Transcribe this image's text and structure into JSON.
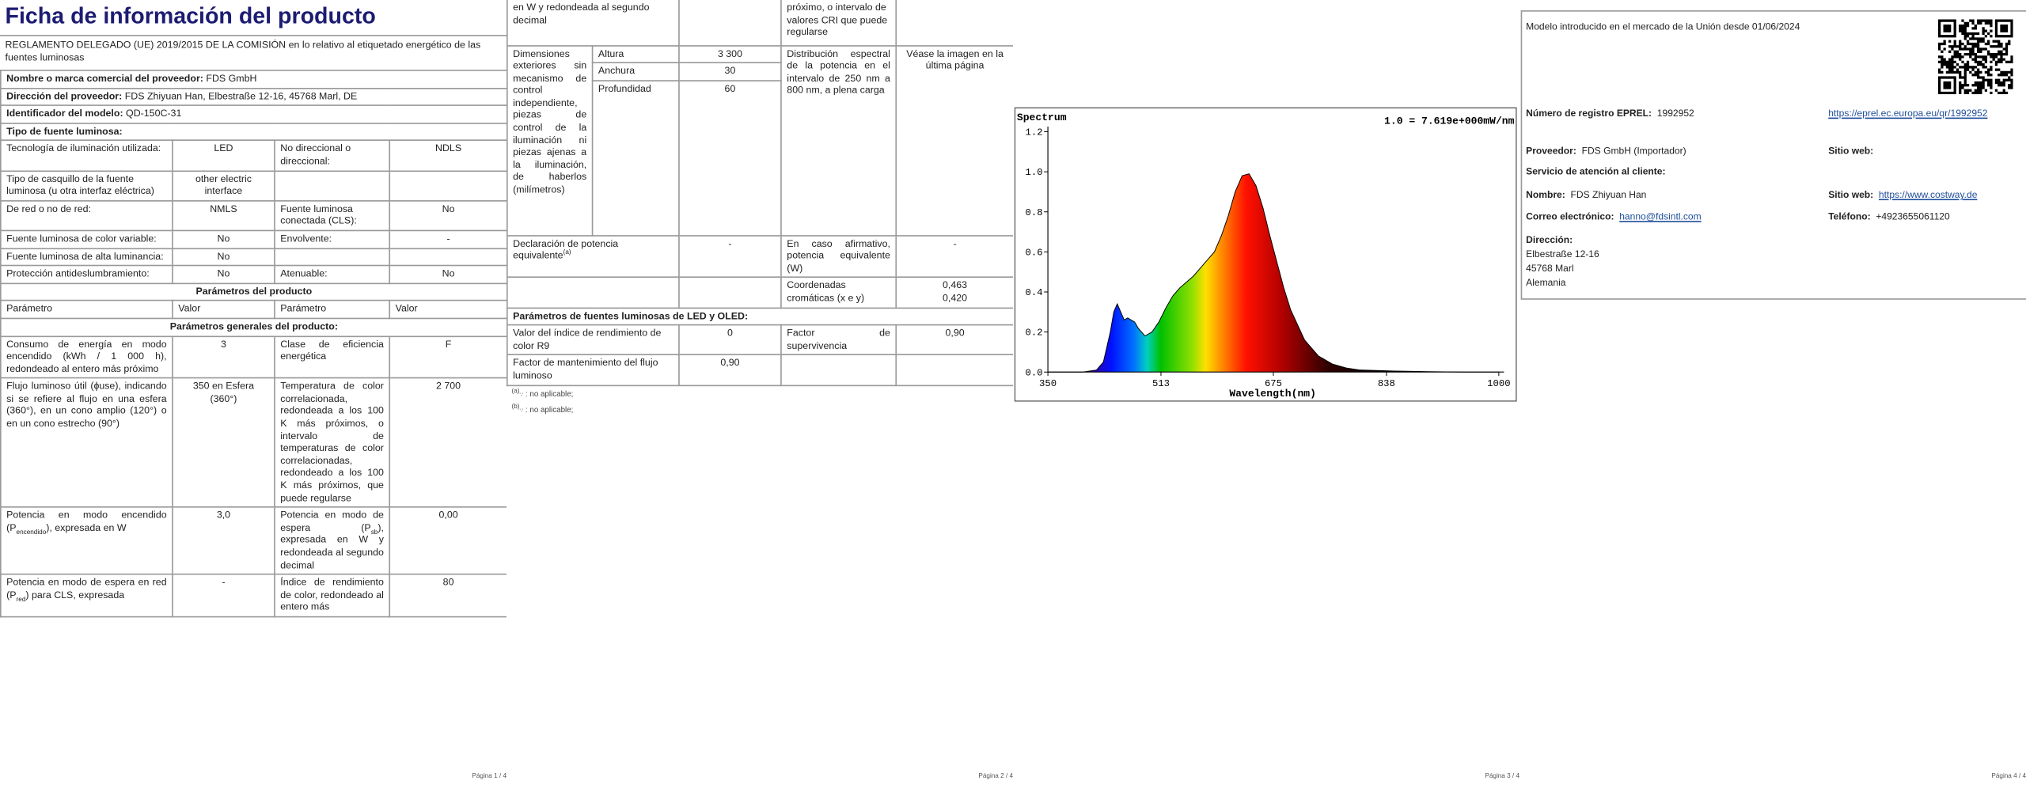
{
  "page1": {
    "title": "Ficha de información del producto",
    "regulation": "REGLAMENTO DELEGADO (UE) 2019/2015 DE LA COMISIÓN en lo relativo al etiquetado energético de las fuentes luminosas",
    "supplier": {
      "label": "Nombre o marca comercial del proveedor:",
      "value": "FDS GmbH"
    },
    "address": {
      "label": "Dirección del proveedor:",
      "value": "FDS Zhiyuan Han, Elbestraße 12-16, 45768 Marl, DE"
    },
    "model": {
      "label": "Identificador del modelo:",
      "value": "QD-150C-31"
    },
    "source_type": "Tipo de fuente luminosa:",
    "rows": [
      [
        "Tecnología de iluminación utilizada:",
        "LED",
        "No direccional o direccional:",
        "NDLS"
      ],
      [
        "Tipo de casquillo de la fuente luminosa (u otra interfaz eléctrica)",
        "other electric interface"
      ],
      [
        "De red o no de red:",
        "NMLS",
        "Fuente luminosa conectada (CLS):",
        "No"
      ],
      [
        "Fuente luminosa de color variable:",
        "No",
        "Envolvente:",
        "-"
      ],
      [
        "Fuente luminosa de alta luminancia:",
        "No"
      ],
      [
        "Protección antideslumbramiento:",
        "No",
        "Atenuable:",
        "No"
      ]
    ],
    "product_params": "Parámetros del producto",
    "header": [
      "Parámetro",
      "Valor",
      "Parámetro",
      "Valor"
    ],
    "general": "Parámetros generales del producto:",
    "general_rows": [
      [
        "Consumo de energía en modo encendido (kWh / 1 000 h), redondeado al entero más próximo",
        "3",
        "Clase de eficiencia energética",
        "F"
      ],
      [
        "Flujo luminoso útil (ɸuse), indicando si se refiere al flujo en una esfera (360°), en un cono amplio (120°) o en un cono estrecho (90°)",
        "350 en Esfera (360°)",
        "Temperatura de color correlacionada, redondeada a los 100 K más próximos, o intervalo de temperaturas de color correlacionadas, redondeado a los 100 K más próximos, que puede regularse",
        "2 700"
      ],
      [
        [
          "Potencia en modo encendido (P",
          "encendido",
          "), expresada en W"
        ],
        "3,0",
        [
          "Potencia en modo de espera (P",
          "sb",
          "), expresada en W y redondeada al segundo decimal"
        ],
        "0,00"
      ],
      [
        [
          "Potencia en modo de espera en red (P",
          "red",
          ") para CLS, expresada"
        ],
        "-",
        "Índice de rendimiento de color, redondeado al entero más",
        "80"
      ]
    ],
    "footer": "Página 1 / 4"
  },
  "page2": {
    "continuation": [
      "en W y redondeada al segundo decimal",
      "próximo, o intervalo de valores CRI que puede regularse"
    ],
    "dimensions": {
      "label": "Dimensiones exteriores sin mecanismo de control independiente, piezas de control de la iluminación ni piezas ajenas a la iluminación, de haberlos (milímetros)",
      "items": [
        [
          "Altura",
          "3 300"
        ],
        [
          "Anchura",
          "30"
        ],
        [
          "Profundidad",
          "60"
        ]
      ],
      "spd_label": "Distribución espectral de la potencia en el intervalo de 250 nm a 800 nm, a plena carga",
      "spd_value": "Véase la imagen en la última página"
    },
    "equivalent": [
      [
        "Declaración de potencia equivalente",
        "(a)"
      ],
      "-",
      "En caso afirmativo, potencia equivalente (W)",
      "-"
    ],
    "chromaticity": {
      "label": "Coordenadas cromáticas (x e y)",
      "x": "0,463",
      "y": "0,420"
    },
    "led_header": "Parámetros de fuentes luminosas de LED y OLED:",
    "led_rows": [
      [
        "Valor del índice de rendimiento de color R9",
        "0",
        "Factor de supervivencia",
        "0,90"
      ],
      [
        "Factor de mantenimiento del flujo luminoso",
        "0,90"
      ]
    ],
    "notes": [
      {
        "mark": "(a)",
        "symbol": "'-'",
        "text": ": no aplicable;"
      },
      {
        "mark": "(b)",
        "symbol": "'-'",
        "text": ": no aplicable;"
      }
    ],
    "footer": "Página 2 / 4"
  },
  "page3": {
    "chart_data": {
      "type": "area",
      "title": "Spectrum",
      "note": "1.0 = 7.619e+000mW/nm",
      "x_label": "Wavelength(nm)",
      "x": [
        350,
        400,
        420,
        430,
        440,
        445,
        450,
        455,
        460,
        465,
        470,
        475,
        480,
        490,
        500,
        510,
        520,
        530,
        540,
        550,
        560,
        570,
        580,
        590,
        600,
        610,
        620,
        630,
        640,
        650,
        660,
        670,
        680,
        690,
        700,
        720,
        740,
        760,
        780,
        800,
        850,
        900,
        950,
        1000
      ],
      "values": [
        0,
        0,
        0.01,
        0.05,
        0.2,
        0.3,
        0.34,
        0.3,
        0.26,
        0.27,
        0.26,
        0.25,
        0.22,
        0.18,
        0.2,
        0.25,
        0.32,
        0.38,
        0.42,
        0.45,
        0.48,
        0.52,
        0.56,
        0.6,
        0.68,
        0.78,
        0.9,
        0.98,
        0.99,
        0.93,
        0.82,
        0.68,
        0.55,
        0.42,
        0.31,
        0.16,
        0.08,
        0.04,
        0.02,
        0.01,
        0.005,
        0.002,
        0,
        0
      ],
      "xlim": [
        350,
        1000
      ],
      "xticks": [
        350,
        513,
        675,
        838,
        1000
      ],
      "ylim": [
        0,
        1.2
      ],
      "yticks": [
        {
          "value": 0,
          "label": "0.0"
        },
        {
          "value": 0.2,
          "label": "0.2"
        },
        {
          "value": 0.4,
          "label": "0.4"
        },
        {
          "value": 0.6,
          "label": "0.6"
        },
        {
          "value": 0.8,
          "label": "0.8"
        },
        {
          "value": 1,
          "label": "1.0"
        },
        {
          "value": 1.2,
          "label": "1.2"
        }
      ]
    },
    "footer": "Página 3 / 4"
  },
  "page4": {
    "market": "Modelo introducido en el mercado de la Unión desde 01/06/2024",
    "eprel": {
      "label": "Número de registro EPREL:",
      "value": "1992952",
      "link": "https://eprel.ec.europa.eu/qr/1992952"
    },
    "supplier": {
      "label": "Proveedor:",
      "value": "FDS GmbH (Importador)"
    },
    "website_label": "Sitio web:",
    "service": "Servicio de atención al cliente:",
    "name": {
      "label": "Nombre:",
      "value": "FDS Zhiyuan Han"
    },
    "service_website": {
      "label": "Sitio web:",
      "value": "https://www.costway.de"
    },
    "email": {
      "label": "Correo electrónico:",
      "value": "hanno@fdsintl.com"
    },
    "phone": {
      "label": "Teléfono:",
      "value": "+4923655061120"
    },
    "address": {
      "label": "Dirección:",
      "lines": [
        "Elbestraße 12-16",
        "45768 Marl",
        "Alemania"
      ]
    },
    "footer": "Página 4 / 4"
  }
}
